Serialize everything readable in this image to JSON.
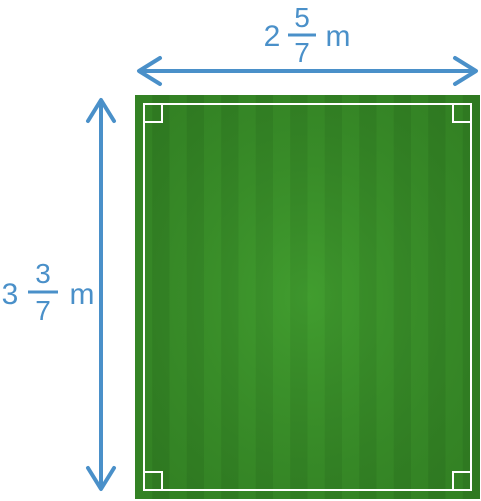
{
  "dimensions": {
    "width": {
      "whole": "2",
      "numerator": "5",
      "denominator": "7",
      "unit": "m"
    },
    "height": {
      "whole": "3",
      "numerator": "3",
      "denominator": "7",
      "unit": "m"
    }
  },
  "colors": {
    "arrow": "#4a90c9",
    "text": "#4a90c9",
    "field_dark": "#2f7a22",
    "field_light": "#3f9a2c",
    "field_border": "#3d8a2a",
    "line": "#ffffff"
  },
  "icons": {
    "width_arrow": "double-headed-arrow-horizontal",
    "height_arrow": "double-headed-arrow-vertical"
  }
}
